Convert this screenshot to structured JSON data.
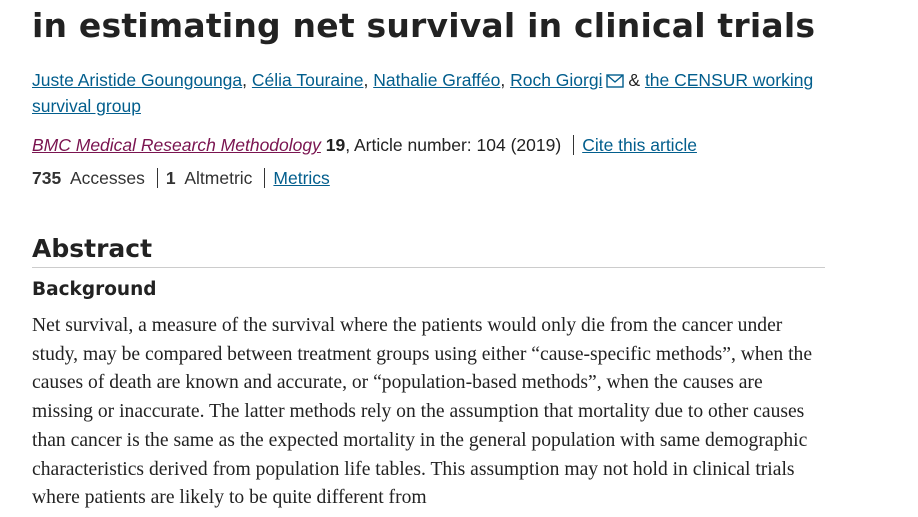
{
  "article": {
    "title": "in estimating net survival in clinical trials",
    "authors": {
      "names": [
        "Juste Aristide Goungounga",
        "Célia Touraine",
        "Nathalie Grafféo",
        "Roch Giorgi"
      ],
      "separator": ",",
      "conjunction": "&",
      "group": "the CENSUR working survival group"
    },
    "citation": {
      "journal": "BMC Medical Research Methodology",
      "volume": "19",
      "details": ", Article number: 104 (2019)",
      "cite_link": "Cite this article"
    },
    "metrics": {
      "accesses_count": "735",
      "accesses_label": "Accesses",
      "altmetric_count": "1",
      "altmetric_label": "Altmetric",
      "metrics_link": "Metrics"
    },
    "abstract": {
      "heading": "Abstract",
      "section": "Background",
      "text": "Net survival, a measure of the survival where the patients would only die from the cancer under study, may be compared between treatment groups using either “cause-specific methods”, when the causes of death are known and accurate, or “population-based methods”, when the causes are missing or inaccurate. The latter methods rely on the assumption that mortality due to other causes than cancer is the same as the expected mortality in the general population with same demographic characteristics derived from population life tables. This assumption may not hold in clinical trials where patients are likely to be quite different from"
    }
  }
}
